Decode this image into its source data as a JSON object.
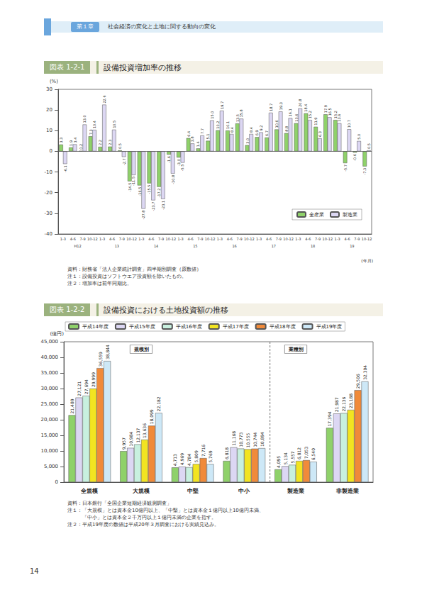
{
  "header": {
    "chapter": "第１章",
    "title": "社会経済の変化と土地に関する動向の変化"
  },
  "page_number": "14",
  "chart_data": [
    {
      "type": "bar",
      "figure_number": "図表 1-2-1",
      "title": "設備投資増加率の推移",
      "y_label": "(%)",
      "x_label": "(年月)",
      "categories": [
        "1-3",
        "4-6",
        "7-9",
        "10-12",
        "1-3",
        "4-6",
        "7-9",
        "10-12",
        "1-3",
        "4-6",
        "7-9",
        "10-12",
        "1-3",
        "4-6",
        "7-9",
        "10-12",
        "1-3",
        "4-6",
        "7-9",
        "10-12",
        "1-3",
        "4-6",
        "7-9",
        "10-12",
        "1-3",
        "4-6",
        "7-9",
        "10-12",
        "1-3",
        "4-6",
        "7-9",
        "10-12"
      ],
      "category_groups": [
        "H12",
        "13",
        "14",
        "15",
        "16",
        "17",
        "18",
        "19"
      ],
      "series": [
        {
          "name": "全産業",
          "color": "#8fd16a",
          "values": [
            3.3,
            1.9,
            0.2,
            7.3,
            2.2,
            2.3,
            0.5,
            -14.5,
            -16.5,
            -15.5,
            -17.2,
            -1.6,
            -3.0,
            6.4,
            1.4,
            5.1,
            10.2,
            10.1,
            13.5,
            3.0,
            6.9,
            6.7,
            10.6,
            8.8,
            13.6,
            18.4,
            11.9,
            17.9,
            15.2,
            -5.7,
            -0.6,
            -7.3
          ],
          "value_labels": [
            "3.3",
            "1.9",
            "0.2",
            "7.3",
            "2.2",
            "2.3",
            "0.5",
            "-14.5",
            "-16.5",
            "-15.5",
            "-17.2",
            "-1.6",
            "-3.0",
            "6.4",
            "1.4",
            "5.1",
            "10.2",
            "10.1",
            "13.5",
            "3.0",
            "6.9",
            "6.7",
            "10.6",
            "8.8",
            "13.6",
            "18.4",
            "11.9",
            "17.9",
            "15.2",
            "-5.7",
            "-0.6",
            "-7.3"
          ]
        },
        {
          "name": "製造業",
          "color": "#dcd7f3",
          "values": [
            -6.1,
            3.4,
            13.0,
            10.4,
            22.6,
            10.5,
            -2.7,
            -11.5,
            -27.8,
            -23.7,
            -23.1,
            -10.8,
            -5.5,
            3.8,
            7.7,
            15.0,
            19.7,
            8.4,
            15.8,
            8.4,
            9.2,
            18.7,
            19.3,
            16.1,
            20.8,
            15.2,
            6.3,
            16.5,
            13.6,
            10.7,
            5.0,
            0.5
          ],
          "value_labels": [
            "-6.1",
            "3.4",
            "13.0",
            "10.4",
            "22.6",
            "10.5",
            "-2.7",
            "-11.5",
            "-27.8",
            "-23.7",
            "-23.1",
            "-10.8",
            "-5.5",
            "3.8",
            "7.7",
            "15.0",
            "19.7",
            "8.4",
            "15.8",
            "8.4",
            "9.2",
            "18.7",
            "19.3",
            "16.1",
            "20.8",
            "15.2",
            "6.3",
            "16.5",
            "13.6",
            "10.7",
            "5.0",
            "0.5"
          ]
        }
      ],
      "ylim": [
        -40,
        30
      ],
      "yticks": [
        -40,
        -30,
        -20,
        -10,
        0,
        10,
        20,
        30
      ],
      "grid": false,
      "legend": "lower right",
      "data_labels": true,
      "notes": [
        "資料：財務省「法人企業統計調査」四半期別調査（原数値）",
        "注１：設備投資はソフトウエア投資額を除いたもの。",
        "注２：増加率は前年同期比。"
      ]
    },
    {
      "type": "bar",
      "figure_number": "図表 1-2-2",
      "title": "設備投資における土地投資額の推移",
      "y_label": "(億円)",
      "categories": [
        "全規模",
        "大規模",
        "中堅",
        "中小",
        "製造業",
        "非製造業"
      ],
      "group_labels": [
        "規模別",
        "業種別"
      ],
      "series": [
        {
          "name": "平成14年度",
          "color": "#8fd16a",
          "values": [
            21489,
            9957,
            4713,
            6818,
            4095,
            17394
          ],
          "value_labels": [
            "21,489",
            "9,957",
            "4,713",
            "6,818",
            "4,095",
            "17,394"
          ]
        },
        {
          "name": "平成15年度",
          "color": "#dcd7f3",
          "values": [
            27121,
            10984,
            4969,
            11168,
            5134,
            21987
          ],
          "value_labels": [
            "27,121",
            "10,984",
            "4,969",
            "11,168",
            "5,134",
            "21,987"
          ]
        },
        {
          "name": "平成16年度",
          "color": "#c8f0df",
          "values": [
            27694,
            12137,
            4784,
            10773,
            5557,
            22136
          ],
          "value_labels": [
            "27,694",
            "12,137",
            "4,784",
            "10,773",
            "5,557",
            "22,136"
          ]
        },
        {
          "name": "平成17年度",
          "color": "#f2e421",
          "values": [
            29999,
            13636,
            5809,
            10555,
            6812,
            23188
          ],
          "value_labels": [
            "29,999",
            "13,636",
            "5,809",
            "10,555",
            "6,812",
            "23,188"
          ]
        },
        {
          "name": "平成18年度",
          "color": "#f08a3a",
          "values": [
            36559,
            18099,
            7716,
            10744,
            7053,
            29506
          ],
          "value_labels": [
            "36,559",
            "18,099",
            "7,716",
            "10,744",
            "7,053",
            "29,506"
          ]
        },
        {
          "name": "平成19年度",
          "color": "#cde8f7",
          "values": [
            38844,
            22182,
            5769,
            10894,
            6540,
            32304
          ],
          "value_labels": [
            "38,844",
            "22,182",
            "5,769",
            "10,894",
            "6,540",
            "32,304"
          ]
        }
      ],
      "ylim": [
        0,
        45000
      ],
      "yticks": [
        0,
        {
          "value": 5000,
          "label": "5,000"
        },
        {
          "value": 10000,
          "label": "10,000"
        },
        {
          "value": 15000,
          "label": "15,000"
        },
        {
          "value": 20000,
          "label": "20,000"
        },
        {
          "value": 25000,
          "label": "25,000"
        },
        {
          "value": 30000,
          "label": "30,000"
        },
        {
          "value": 35000,
          "label": "35,000"
        },
        {
          "value": 40000,
          "label": "40,000"
        },
        {
          "value": 45000,
          "label": "45,000"
        }
      ],
      "grid": false,
      "legend": "top",
      "data_labels": true,
      "notes": [
        "資料：日本銀行「全国企業短期経済観測調査」",
        "注１：「大規模」とは資本金10億円以上、「中堅」とは資本金１億円以上10億円未満、",
        "　　　「中小」とは資本金２千万円以上１億円未満の企業を指す。",
        "注２：平成19年度の数値は平成20年３月調査における実績見込み。"
      ]
    }
  ]
}
